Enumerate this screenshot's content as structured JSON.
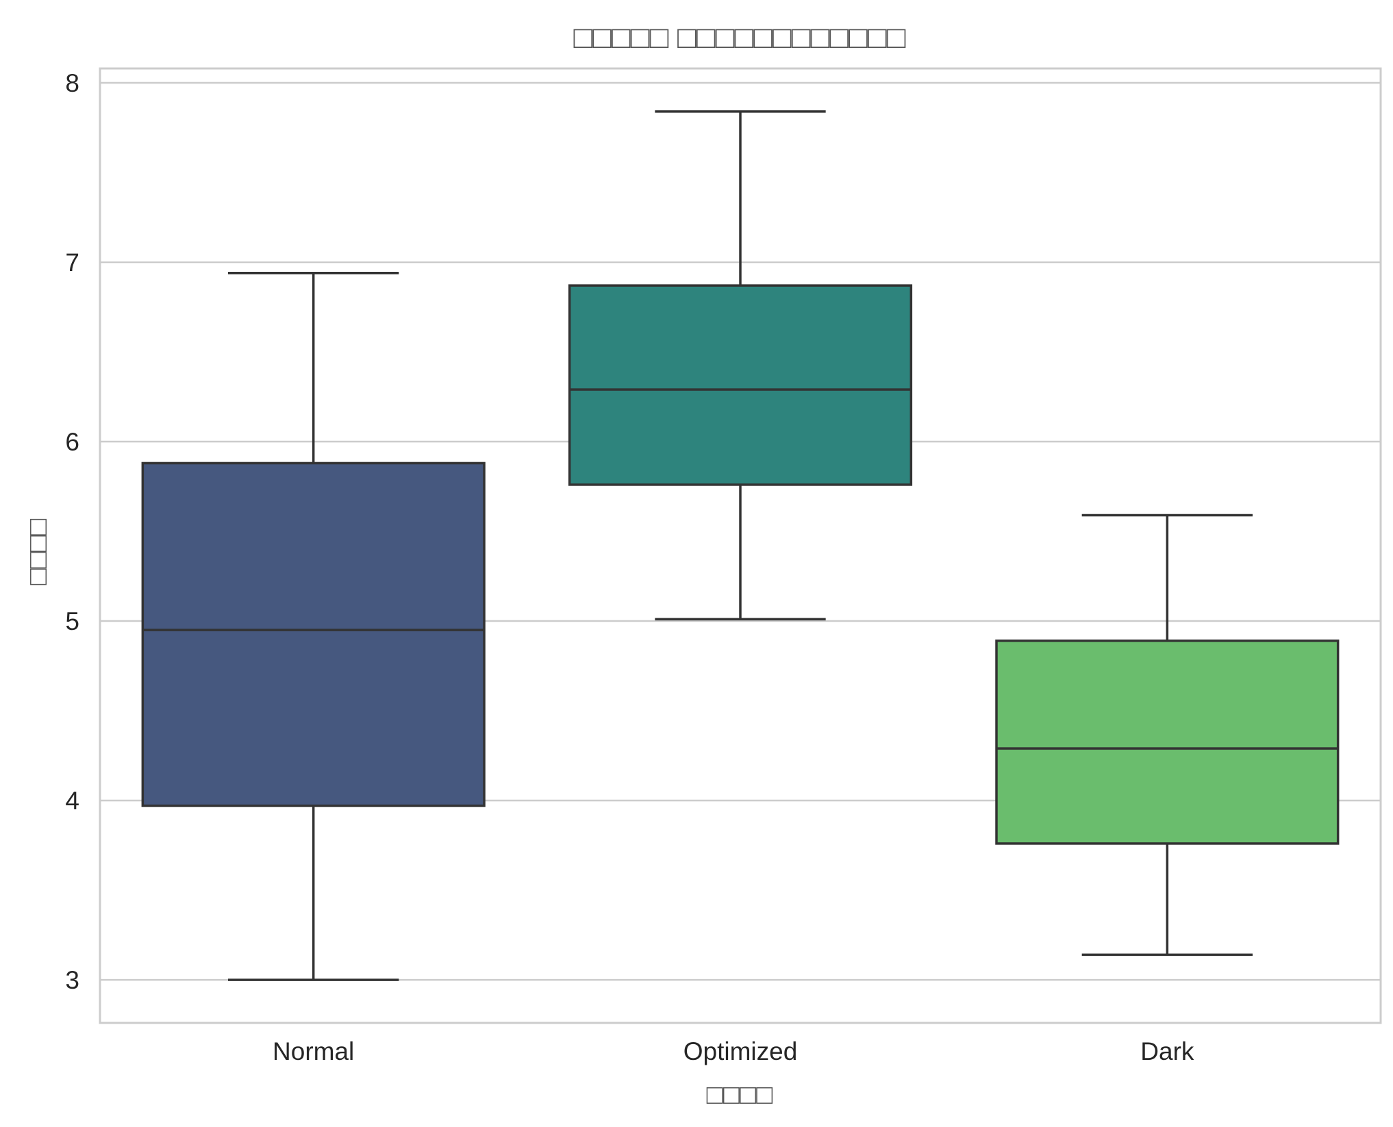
{
  "chart_data": {
    "type": "box",
    "title": "□□□□□ □□□□□□□□□□□□",
    "xlabel": "□□□□",
    "ylabel": "□□□□",
    "ylim": [
      2.76,
      8.08
    ],
    "yticks": [
      3,
      4,
      5,
      6,
      7,
      8
    ],
    "grid": true,
    "categories": [
      "Normal",
      "Optimized",
      "Dark"
    ],
    "boxes": [
      {
        "name": "Normal",
        "whisker_low": 3.0,
        "q1": 3.97,
        "median": 4.95,
        "q3": 5.88,
        "whisker_high": 6.94,
        "color": "#46587f"
      },
      {
        "name": "Optimized",
        "whisker_low": 5.01,
        "q1": 5.76,
        "median": 6.29,
        "q3": 6.87,
        "whisker_high": 7.84,
        "color": "#2e847d"
      },
      {
        "name": "Dark",
        "whisker_low": 3.14,
        "q1": 3.76,
        "median": 4.29,
        "q3": 4.89,
        "whisker_high": 5.59,
        "color": "#6abd6d"
      }
    ],
    "colors": {
      "grid": "#cccccc",
      "frame": "#cccccc",
      "line": "#333333"
    }
  }
}
